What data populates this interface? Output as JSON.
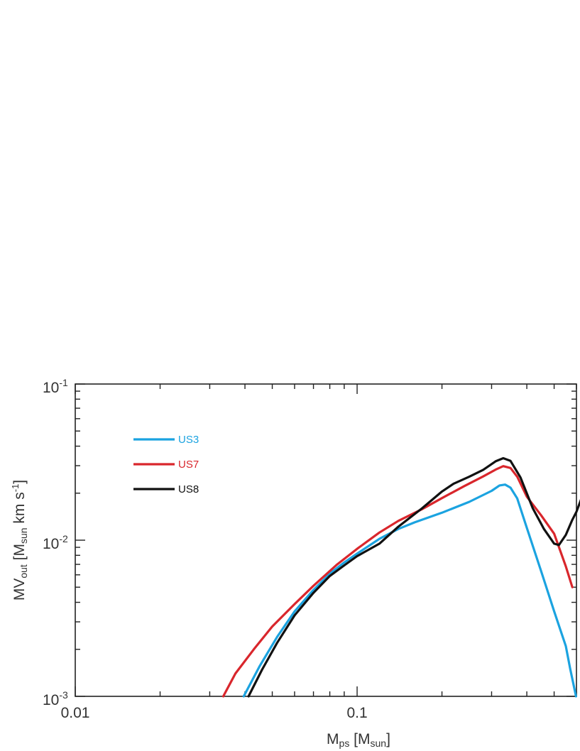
{
  "chart_data": {
    "type": "line",
    "xlabel": {
      "main": "M",
      "sub": "ps",
      "rest": " [M",
      "sub2": "sun",
      "close": "]"
    },
    "ylabel": {
      "main": "MV",
      "sub": "out",
      "rest": " [M",
      "sub2": "sun",
      "rest2": " km s",
      "sup": "-1",
      "close": "]"
    },
    "x_scale": "log",
    "y_scale": "log",
    "xlim": [
      0.01,
      0.6
    ],
    "ylim": [
      0.001,
      0.1
    ],
    "x_ticks": [
      {
        "value": 0.01,
        "label": "0.01"
      },
      {
        "value": 0.1,
        "label": "0.1"
      }
    ],
    "y_ticks": [
      {
        "value": 0.1,
        "base": "10",
        "exp": "-1"
      },
      {
        "value": 0.01,
        "base": "10",
        "exp": "-2"
      },
      {
        "value": 0.001,
        "base": "10",
        "exp": "-3"
      }
    ],
    "grid": false,
    "legend_position": "top-left",
    "series": [
      {
        "name": "US3",
        "color": "#1ba3e0",
        "points": [
          [
            0.0396,
            0.001
          ],
          [
            0.045,
            0.00155
          ],
          [
            0.052,
            0.0024
          ],
          [
            0.06,
            0.0035
          ],
          [
            0.07,
            0.0048
          ],
          [
            0.08,
            0.0061
          ],
          [
            0.09,
            0.0072
          ],
          [
            0.1,
            0.0082
          ],
          [
            0.12,
            0.0102
          ],
          [
            0.14,
            0.0118
          ],
          [
            0.16,
            0.013
          ],
          [
            0.2,
            0.015
          ],
          [
            0.25,
            0.0176
          ],
          [
            0.3,
            0.0207
          ],
          [
            0.32,
            0.0224
          ],
          [
            0.335,
            0.0227
          ],
          [
            0.35,
            0.0217
          ],
          [
            0.37,
            0.0185
          ],
          [
            0.4,
            0.012
          ],
          [
            0.45,
            0.0063
          ],
          [
            0.5,
            0.0035
          ],
          [
            0.55,
            0.0021
          ],
          [
            0.57,
            0.0015
          ],
          [
            0.598,
            0.001
          ]
        ]
      },
      {
        "name": "US7",
        "color": "#d9262c",
        "points": [
          [
            0.0335,
            0.001
          ],
          [
            0.037,
            0.0014
          ],
          [
            0.043,
            0.002
          ],
          [
            0.05,
            0.0028
          ],
          [
            0.06,
            0.0039
          ],
          [
            0.07,
            0.0051
          ],
          [
            0.085,
            0.007
          ],
          [
            0.1,
            0.0088
          ],
          [
            0.12,
            0.0112
          ],
          [
            0.14,
            0.0133
          ],
          [
            0.17,
            0.0158
          ],
          [
            0.2,
            0.0186
          ],
          [
            0.24,
            0.0222
          ],
          [
            0.28,
            0.0256
          ],
          [
            0.31,
            0.0283
          ],
          [
            0.33,
            0.0298
          ],
          [
            0.35,
            0.029
          ],
          [
            0.37,
            0.0255
          ],
          [
            0.4,
            0.019
          ],
          [
            0.45,
            0.0144
          ],
          [
            0.5,
            0.011
          ],
          [
            0.55,
            0.0068
          ],
          [
            0.58,
            0.005
          ]
        ]
      },
      {
        "name": "US8",
        "color": "#111111",
        "points": [
          [
            0.0412,
            0.001
          ],
          [
            0.046,
            0.00148
          ],
          [
            0.052,
            0.0022
          ],
          [
            0.06,
            0.0033
          ],
          [
            0.07,
            0.0046
          ],
          [
            0.08,
            0.0059
          ],
          [
            0.09,
            0.0069
          ],
          [
            0.1,
            0.0079
          ],
          [
            0.12,
            0.0095
          ],
          [
            0.14,
            0.0122
          ],
          [
            0.17,
            0.016
          ],
          [
            0.2,
            0.0205
          ],
          [
            0.22,
            0.023
          ],
          [
            0.25,
            0.0255
          ],
          [
            0.28,
            0.0282
          ],
          [
            0.31,
            0.032
          ],
          [
            0.33,
            0.0335
          ],
          [
            0.35,
            0.0322
          ],
          [
            0.38,
            0.0252
          ],
          [
            0.42,
            0.016
          ],
          [
            0.46,
            0.0118
          ],
          [
            0.5,
            0.0095
          ],
          [
            0.52,
            0.0093
          ],
          [
            0.55,
            0.0108
          ],
          [
            0.58,
            0.0135
          ],
          [
            0.6,
            0.0152
          ],
          [
            0.625,
            0.0185
          ]
        ]
      }
    ]
  }
}
